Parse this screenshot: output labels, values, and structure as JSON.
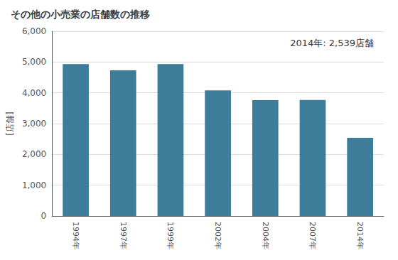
{
  "chart_data": {
    "type": "bar",
    "title": "その他の小売業の店舗数の推移",
    "ylabel": "[店舗]",
    "annotation": "2014年: 2,539店舗",
    "categories": [
      "1994年",
      "1997年",
      "1999年",
      "2002年",
      "2004年",
      "2007年",
      "2014年"
    ],
    "values": [
      4930,
      4730,
      4930,
      4080,
      3760,
      3770,
      2539
    ],
    "color": "#3d7d9a",
    "ylim": [
      0,
      6000
    ],
    "yticks": [
      0,
      {
        "value": 1000,
        "label": "1,000"
      },
      {
        "value": 2000,
        "label": "2,000"
      },
      {
        "value": 3000,
        "label": "3,000"
      },
      {
        "value": 4000,
        "label": "4,000"
      },
      {
        "value": 5000,
        "label": "5,000"
      },
      {
        "value": 6000,
        "label": "6,000"
      }
    ],
    "grid": true
  }
}
